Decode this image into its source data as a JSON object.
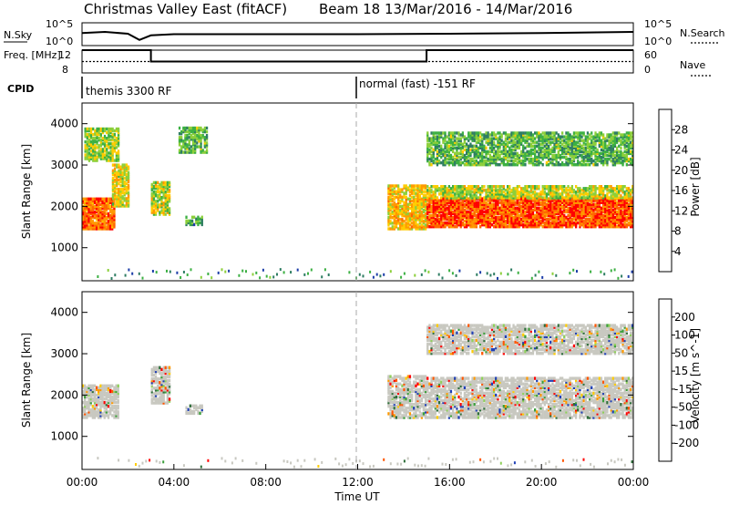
{
  "chart_data": [
    {
      "type": "line",
      "title": "Christmas Valley East (fitACF)",
      "subtitle": "Beam 18  13/Mar/2016 - 14/Mar/2016",
      "left_label": "N.Sky",
      "right_label": "N.Search",
      "left_ticks": [
        "10^5",
        "10^0"
      ],
      "right_ticks": [
        "10^5",
        "10^0"
      ],
      "series": [
        {
          "name": "N.Sky",
          "x": [
            "00:00",
            "01:00",
            "02:00",
            "02:30",
            "03:00",
            "04:00",
            "08:00",
            "12:00",
            "16:00",
            "20:00",
            "24:00"
          ],
          "values": [
            0.55,
            0.6,
            0.52,
            0.25,
            0.45,
            0.5,
            0.5,
            0.5,
            0.52,
            0.55,
            0.6
          ]
        }
      ]
    },
    {
      "type": "line",
      "left_label": "Freq. [MHz]",
      "right_label": "Nave",
      "left_ticks": [
        "12",
        "8"
      ],
      "right_ticks": [
        "60",
        "0"
      ],
      "series": [
        {
          "name": "Freq",
          "x": [
            "00:00",
            "03:00",
            "03:00",
            "15:00",
            "15:00",
            "24:00"
          ],
          "values": [
            12,
            12,
            10,
            10,
            12,
            12
          ]
        },
        {
          "name": "Nave",
          "x": [
            "00:00",
            "03:00",
            "03:00",
            "15:00",
            "15:00",
            "24:00"
          ],
          "values": [
            30,
            30,
            30,
            30,
            30,
            30
          ]
        }
      ]
    },
    {
      "type": "table",
      "label": "CPID",
      "entries": [
        {
          "start": "00:00",
          "text": "themis 3300 RF"
        },
        {
          "start": "12:00",
          "text": "normal (fast) -151 RF"
        }
      ]
    },
    {
      "type": "heatmap",
      "ylabel": "Slant Range [km]",
      "yticks": [
        "1000",
        "2000",
        "3000",
        "4000"
      ],
      "ylim": [
        200,
        4500
      ],
      "colorbar_label": "Power [dB]",
      "colorbar_ticks": [
        "4",
        "8",
        "12",
        "16",
        "20",
        "24",
        "28"
      ],
      "colorbar_colors": [
        "#0000ff",
        "#1d3ea8",
        "#2e7d62",
        "#3cb043",
        "#8ccf3a",
        "#ffcc00",
        "#ff9900",
        "#ff6600",
        "#ff0000"
      ],
      "regions": [
        {
          "t0": 0.0,
          "t1": 1.4,
          "r0": 1450,
          "r1": 2200,
          "level": 0.85
        },
        {
          "t0": 1.3,
          "t1": 2.0,
          "r0": 2000,
          "r1": 3000,
          "level": 0.6
        },
        {
          "t0": 0.1,
          "t1": 1.6,
          "r0": 3100,
          "r1": 3900,
          "level": 0.5
        },
        {
          "t0": 3.0,
          "t1": 3.8,
          "r0": 1800,
          "r1": 2600,
          "level": 0.55
        },
        {
          "t0": 4.2,
          "t1": 5.4,
          "r0": 3300,
          "r1": 3900,
          "level": 0.4
        },
        {
          "t0": 4.5,
          "t1": 5.2,
          "r0": 1550,
          "r1": 1750,
          "level": 0.35
        },
        {
          "t0": 13.3,
          "t1": 15.0,
          "r0": 1450,
          "r1": 2500,
          "level": 0.65
        },
        {
          "t0": 15.0,
          "t1": 24.0,
          "r0": 1500,
          "r1": 2200,
          "level": 0.9
        },
        {
          "t0": 15.0,
          "t1": 24.0,
          "r0": 2200,
          "r1": 2500,
          "level": 0.55
        },
        {
          "t0": 15.0,
          "t1": 24.0,
          "r0": 3000,
          "r1": 3800,
          "level": 0.4
        }
      ]
    },
    {
      "type": "heatmap",
      "ylabel": "Slant Range [km]",
      "yticks": [
        "1000",
        "2000",
        "3000",
        "4000"
      ],
      "ylim": [
        200,
        4500
      ],
      "colorbar_label": "Velocity [m s^-1]",
      "colorbar_ticks": [
        "200",
        "100",
        "50",
        "15",
        "-15",
        "-50",
        "-100",
        "-200"
      ],
      "colorbar_colors": [
        "#1f3fb5",
        "#2e6e3a",
        "#3b9f3b",
        "#8fd05a",
        "#c8c8c0",
        "#ffcc00",
        "#ff9900",
        "#ff5500",
        "#ff0000"
      ],
      "regions": [
        {
          "t0": 0.0,
          "t1": 1.6,
          "r0": 1450,
          "r1": 2250,
          "level": 0.5
        },
        {
          "t0": 3.0,
          "t1": 3.8,
          "r0": 1800,
          "r1": 2700,
          "level": 0.5
        },
        {
          "t0": 4.5,
          "t1": 5.2,
          "r0": 1550,
          "r1": 1750,
          "level": 0.3
        },
        {
          "t0": 13.3,
          "t1": 15.0,
          "r0": 1450,
          "r1": 2450,
          "level": 0.4
        },
        {
          "t0": 15.0,
          "t1": 24.0,
          "r0": 1450,
          "r1": 2400,
          "level": 0.5
        },
        {
          "t0": 15.0,
          "t1": 24.0,
          "r0": 3000,
          "r1": 3700,
          "level": 0.5
        }
      ],
      "xlabel": "Time UT",
      "xticks": [
        "00:00",
        "04:00",
        "08:00",
        "12:00",
        "16:00",
        "20:00",
        "00:00"
      ],
      "xlim_hours": [
        0,
        24
      ]
    }
  ]
}
